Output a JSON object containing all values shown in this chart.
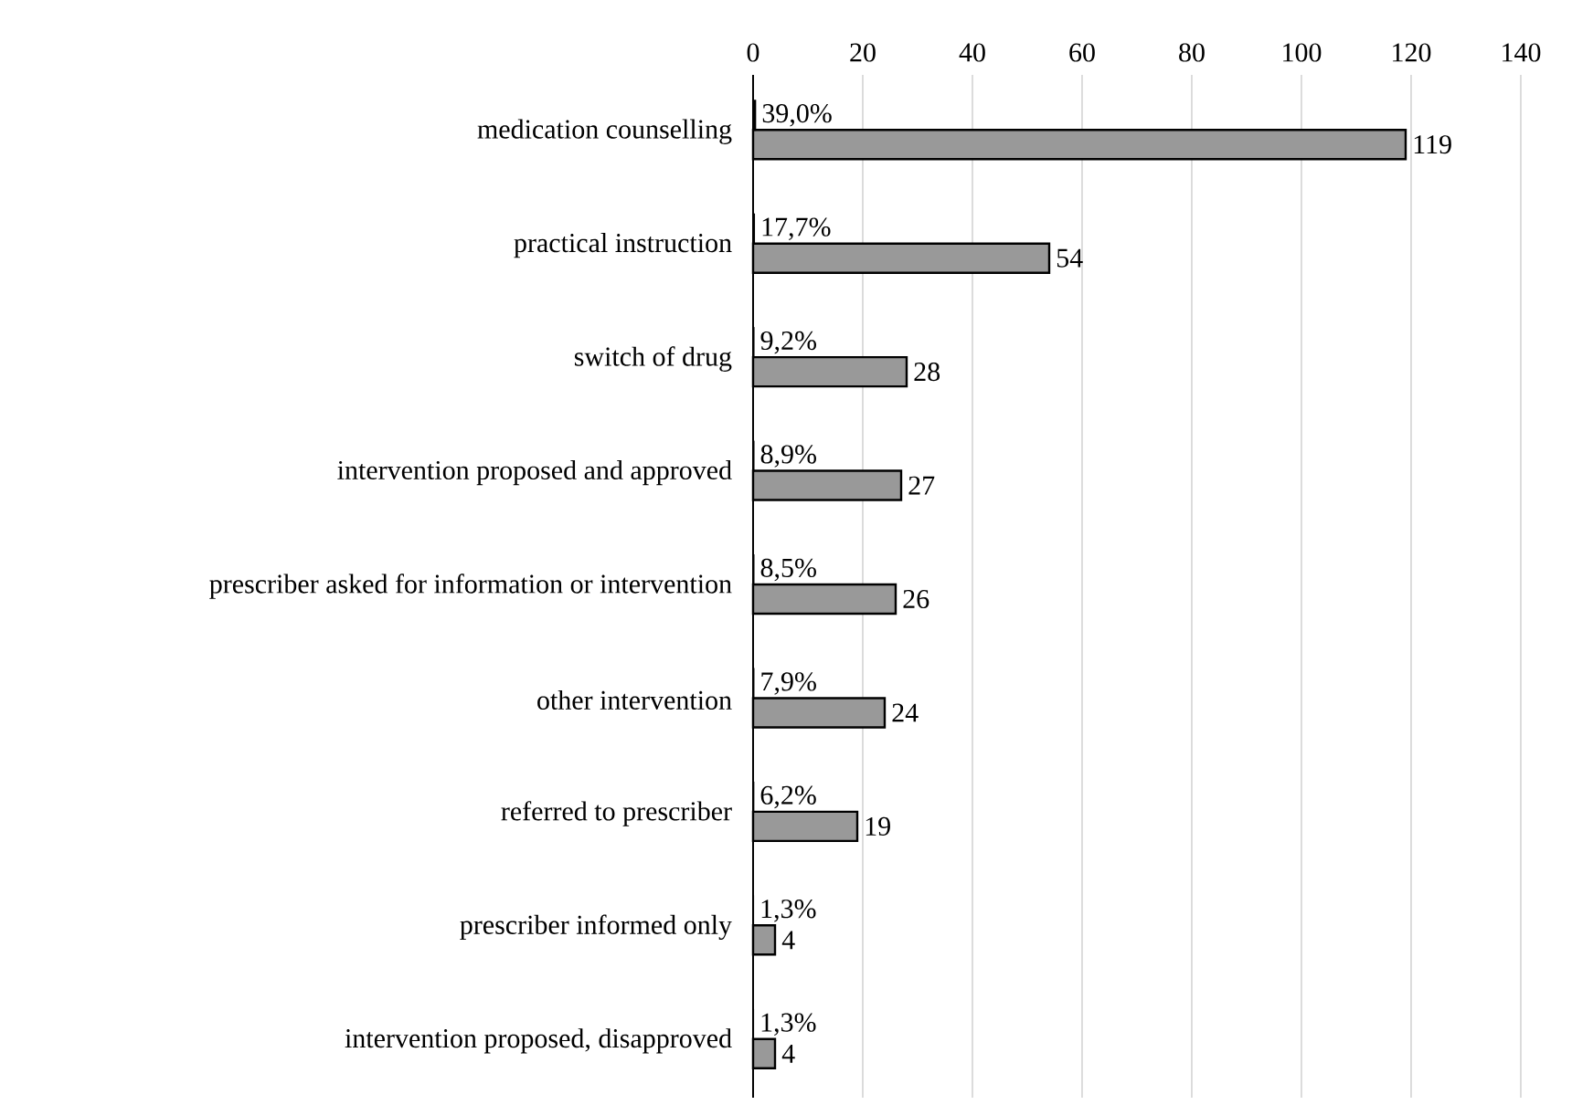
{
  "chart_data": {
    "type": "bar",
    "orientation": "horizontal",
    "categories": [
      "medication counselling",
      "practical instruction",
      "switch of drug",
      "intervention proposed and approved",
      "prescriber asked for information or intervention",
      "other intervention",
      "referred to prescriber",
      "prescriber informed only",
      "intervention proposed, disapproved"
    ],
    "series": [
      {
        "color": "#999999",
        "values": [
          119,
          54,
          28,
          27,
          26,
          24,
          19,
          4,
          4
        ],
        "value_labels": [
          "119",
          "54",
          "28",
          "27",
          "26",
          "24",
          "19",
          "4",
          "4"
        ]
      },
      {
        "color": "#000000",
        "values": [
          0.39,
          0.177,
          0.092,
          0.089,
          0.085,
          0.079,
          0.062,
          0.013,
          0.013
        ],
        "value_labels": [
          "39,0%",
          "17,7%",
          "9,2%",
          "8,9%",
          "8,5%",
          "7,9%",
          "6,2%",
          "1,3%",
          "1,3%"
        ]
      }
    ],
    "xlim": [
      0,
      140
    ],
    "xticks": [
      0,
      20,
      40,
      60,
      80,
      100,
      120,
      140
    ],
    "grid": "x"
  }
}
